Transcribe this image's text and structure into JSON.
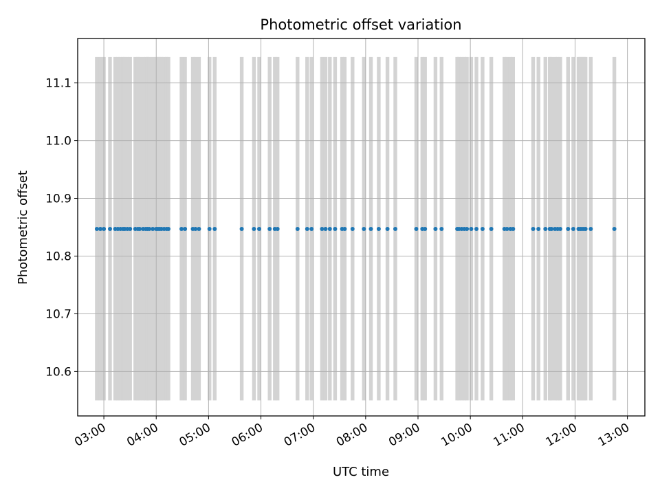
{
  "chart_data": {
    "type": "scatter",
    "title": "Photometric offset variation",
    "xlabel": "UTC time",
    "ylabel": "Photometric offset",
    "x_tick_labels": [
      "03:00",
      "04:00",
      "05:00",
      "06:00",
      "07:00",
      "08:00",
      "09:00",
      "10:00",
      "11:00",
      "12:00",
      "13:00"
    ],
    "y_ticks": [
      10.6,
      10.7,
      10.8,
      10.9,
      11.0,
      11.1
    ],
    "xlim": [
      "02:30",
      "13:20"
    ],
    "ylim": [
      10.523,
      11.177
    ],
    "grid": true,
    "band_color": "#d3d3d3",
    "band_y_range": [
      10.55,
      11.145
    ],
    "marker_color": "#1f77b4",
    "series": [
      {
        "x": [
          "02:52",
          "02:56",
          "03:00",
          "03:07",
          "03:13",
          "03:16",
          "03:19",
          "03:22",
          "03:24",
          "03:27",
          "03:30",
          "03:36",
          "03:39",
          "03:41",
          "03:45",
          "03:48",
          "03:50",
          "03:52",
          "03:56",
          "04:00",
          "04:02",
          "04:04",
          "04:06",
          "04:09",
          "04:12",
          "04:14",
          "04:29",
          "04:33",
          "04:42",
          "04:45",
          "04:49",
          "05:01",
          "05:07",
          "05:38",
          "05:52",
          "05:58",
          "06:10",
          "06:16",
          "06:19",
          "06:42",
          "06:53",
          "06:58",
          "07:10",
          "07:14",
          "07:19",
          "07:25",
          "07:33",
          "07:36",
          "07:45",
          "07:58",
          "08:06",
          "08:15",
          "08:25",
          "08:34",
          "08:58",
          "09:05",
          "09:08",
          "09:20",
          "09:27",
          "09:45",
          "09:47",
          "09:50",
          "09:53",
          "09:56",
          "10:01",
          "10:07",
          "10:14",
          "10:24",
          "10:39",
          "10:42",
          "10:46",
          "10:49",
          "11:12",
          "11:18",
          "11:26",
          "11:31",
          "11:33",
          "11:37",
          "11:40",
          "11:43",
          "11:52",
          "11:58",
          "12:04",
          "12:06",
          "12:08",
          "12:10",
          "12:12",
          "12:18",
          "12:45"
        ],
        "y": [
          10.847,
          10.847,
          10.847,
          10.847,
          10.847,
          10.847,
          10.847,
          10.847,
          10.847,
          10.847,
          10.847,
          10.847,
          10.847,
          10.847,
          10.847,
          10.847,
          10.847,
          10.847,
          10.847,
          10.847,
          10.847,
          10.847,
          10.847,
          10.847,
          10.847,
          10.847,
          10.847,
          10.847,
          10.847,
          10.847,
          10.847,
          10.847,
          10.847,
          10.847,
          10.847,
          10.847,
          10.847,
          10.847,
          10.847,
          10.847,
          10.847,
          10.847,
          10.847,
          10.847,
          10.847,
          10.847,
          10.847,
          10.847,
          10.847,
          10.847,
          10.847,
          10.847,
          10.847,
          10.847,
          10.847,
          10.847,
          10.847,
          10.847,
          10.847,
          10.847,
          10.847,
          10.847,
          10.847,
          10.847,
          10.847,
          10.847,
          10.847,
          10.847,
          10.847,
          10.847,
          10.847,
          10.847,
          10.847,
          10.847,
          10.847,
          10.847,
          10.847,
          10.847,
          10.847,
          10.847,
          10.847,
          10.847,
          10.847,
          10.847,
          10.847,
          10.847,
          10.847,
          10.847,
          10.847
        ]
      }
    ]
  }
}
